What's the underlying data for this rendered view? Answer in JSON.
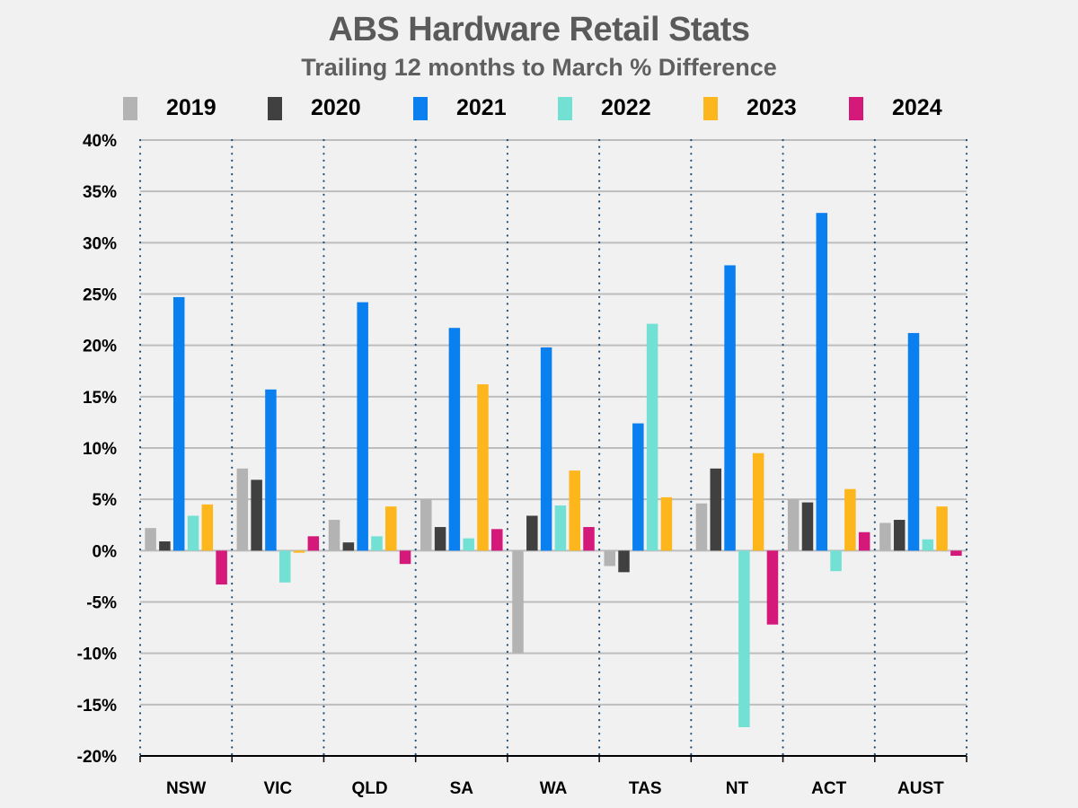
{
  "chart_data": {
    "type": "bar",
    "title": "ABS Hardware Retail Stats",
    "subtitle": "Trailing 12 months to March % Difference",
    "xlabel": "",
    "ylabel": "",
    "ylim": [
      -20,
      40
    ],
    "yticks": [
      40,
      35,
      30,
      25,
      20,
      15,
      10,
      5,
      0,
      -5,
      -10,
      -15,
      -20
    ],
    "ytick_labels": [
      "40%",
      "35%",
      "30%",
      "25%",
      "20%",
      "15%",
      "10%",
      "5%",
      "0%",
      "-5%",
      "-10%",
      "-15%",
      "-20%"
    ],
    "grid": true,
    "legend_position": "top",
    "categories": [
      "NSW",
      "VIC",
      "QLD",
      "SA",
      "WA",
      "TAS",
      "NT",
      "ACT",
      "AUST"
    ],
    "series": [
      {
        "name": "2019",
        "color": "#b3b3b3",
        "values": [
          2.2,
          8.0,
          3.0,
          5.0,
          -10.0,
          -1.5,
          4.6,
          5.0,
          2.7
        ]
      },
      {
        "name": "2020",
        "color": "#404040",
        "values": [
          0.9,
          6.9,
          0.8,
          2.3,
          3.4,
          -2.1,
          8.0,
          4.7,
          3.0
        ]
      },
      {
        "name": "2021",
        "color": "#0a7fef",
        "values": [
          24.7,
          15.7,
          24.2,
          21.7,
          19.8,
          12.4,
          27.8,
          32.9,
          21.2
        ]
      },
      {
        "name": "2022",
        "color": "#72e0d3",
        "values": [
          3.4,
          -3.1,
          1.4,
          1.2,
          4.4,
          22.1,
          -17.2,
          -2.0,
          1.1
        ]
      },
      {
        "name": "2023",
        "color": "#fdb61b",
        "values": [
          4.5,
          -0.2,
          4.3,
          16.2,
          7.8,
          5.2,
          9.5,
          6.0,
          4.3
        ]
      },
      {
        "name": "2024",
        "color": "#d4197a",
        "values": [
          -3.3,
          1.4,
          -1.3,
          2.1,
          2.3,
          0.0,
          -7.2,
          1.8,
          -0.5
        ]
      }
    ]
  }
}
